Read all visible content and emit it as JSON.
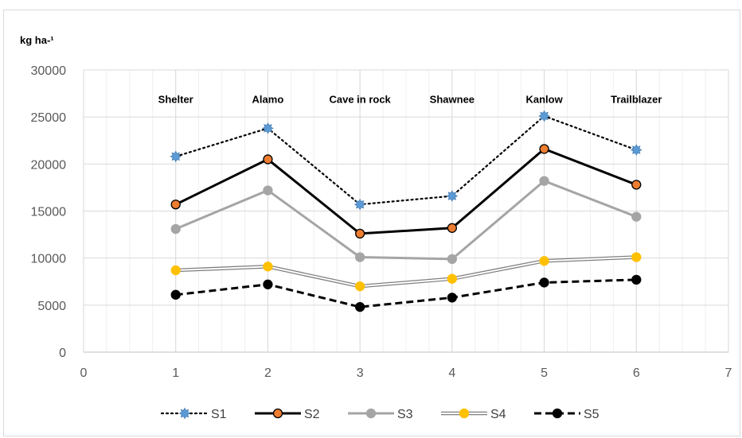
{
  "chart_data": {
    "type": "line",
    "ylabel": "kg ha-¹",
    "xlim": [
      0,
      7
    ],
    "ylim": [
      0,
      30000
    ],
    "x_ticks": [
      0,
      1,
      2,
      3,
      4,
      5,
      6,
      7
    ],
    "y_ticks": [
      0,
      5000,
      10000,
      15000,
      20000,
      25000,
      30000
    ],
    "grid": "major and minor vertical, major horizontal",
    "legend_position": "bottom",
    "x": [
      1,
      2,
      3,
      4,
      5,
      6
    ],
    "annotations": [
      {
        "text": "Shelter",
        "x": 1,
        "y": 26000
      },
      {
        "text": "Alamo",
        "x": 2,
        "y": 26000
      },
      {
        "text": "Cave in rock",
        "x": 3,
        "y": 26000
      },
      {
        "text": "Shawnee",
        "x": 4,
        "y": 26000
      },
      {
        "text": "Kanlow",
        "x": 5,
        "y": 26000
      },
      {
        "text": "Trailblazer",
        "x": 6,
        "y": 26000
      }
    ],
    "series": [
      {
        "name": "S1",
        "values": [
          20800,
          23800,
          15700,
          16600,
          25100,
          21500
        ],
        "line_color": "#000000",
        "marker_fill": "#5b9bd5",
        "line_style": "dotted"
      },
      {
        "name": "S2",
        "values": [
          15700,
          20500,
          12600,
          13200,
          21600,
          17800
        ],
        "line_color": "#000000",
        "marker_fill": "#ed7d31",
        "line_style": "solid"
      },
      {
        "name": "S3",
        "values": [
          13100,
          17200,
          10100,
          9900,
          18200,
          14400
        ],
        "line_color": "#a5a5a5",
        "marker_fill": "#a5a5a5",
        "line_style": "solid"
      },
      {
        "name": "S4",
        "values": [
          8700,
          9100,
          7000,
          7800,
          9700,
          10100
        ],
        "line_color": "#7f7f7f",
        "marker_fill": "#ffc000",
        "line_style": "double"
      },
      {
        "name": "S5",
        "values": [
          6100,
          7200,
          4800,
          5800,
          7400,
          7700
        ],
        "line_color": "#000000",
        "marker_fill": "#000000",
        "line_style": "dashed"
      }
    ]
  }
}
